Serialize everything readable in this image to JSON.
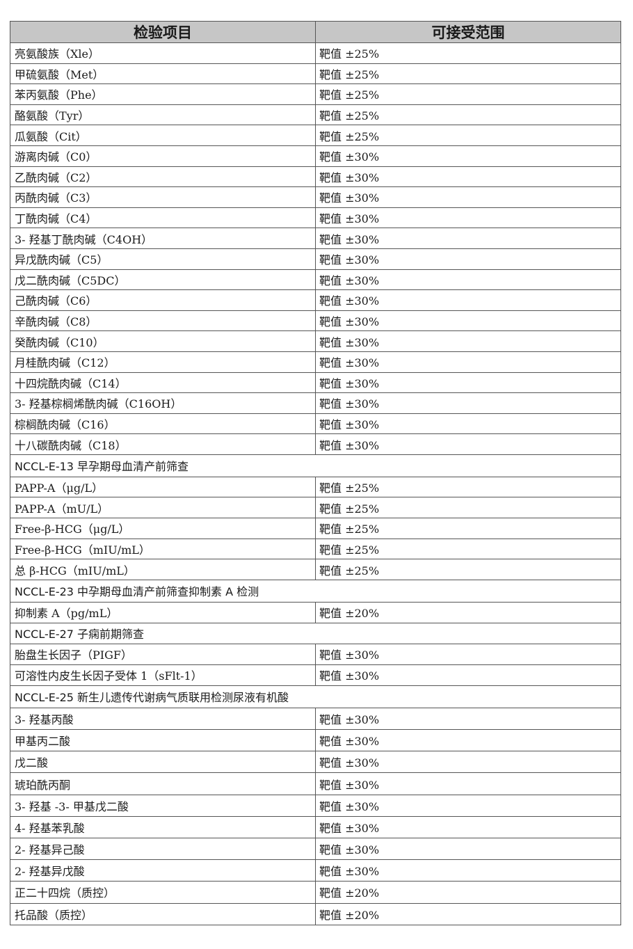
{
  "header": {
    "item": "检验项目",
    "range": "可接受范围"
  },
  "rows": [
    {
      "type": "row",
      "item": "亮氨酸族（Xle）",
      "range": "靶值 ±25%"
    },
    {
      "type": "row",
      "item": "甲硫氨酸（Met）",
      "range": "靶值 ±25%"
    },
    {
      "type": "row",
      "item": "苯丙氨酸（Phe）",
      "range": "靶值 ±25%"
    },
    {
      "type": "row",
      "item": "酪氨酸（Tyr）",
      "range": "靶值 ±25%"
    },
    {
      "type": "row",
      "item": "瓜氨酸（Cit）",
      "range": "靶值 ±25%"
    },
    {
      "type": "row",
      "item": "游离肉碱（C0）",
      "range": "靶值 ±30%"
    },
    {
      "type": "row",
      "item": "乙酰肉碱（C2）",
      "range": "靶值 ±30%"
    },
    {
      "type": "row",
      "item": "丙酰肉碱（C3）",
      "range": "靶值 ±30%"
    },
    {
      "type": "row",
      "item": "丁酰肉碱（C4）",
      "range": "靶值 ±30%"
    },
    {
      "type": "row",
      "item": "3- 羟基丁酰肉碱（C4OH）",
      "range": "靶值 ±30%"
    },
    {
      "type": "row",
      "item": "异戊酰肉碱（C5）",
      "range": "靶值 ±30%"
    },
    {
      "type": "row",
      "item": "戊二酰肉碱（C5DC）",
      "range": "靶值 ±30%"
    },
    {
      "type": "row",
      "item": "己酰肉碱（C6）",
      "range": "靶值 ±30%"
    },
    {
      "type": "row",
      "item": "辛酰肉碱（C8）",
      "range": "靶值 ±30%"
    },
    {
      "type": "row",
      "item": "癸酰肉碱（C10）",
      "range": "靶值 ±30%"
    },
    {
      "type": "row",
      "item": "月桂酰肉碱（C12）",
      "range": "靶值 ±30%"
    },
    {
      "type": "row",
      "item": "十四烷酰肉碱（C14）",
      "range": "靶值 ±30%"
    },
    {
      "type": "row",
      "item": "3- 羟基棕榈烯酰肉碱（C16OH）",
      "range": "靶值 ±30%"
    },
    {
      "type": "row",
      "item": "棕榈酰肉碱（C16）",
      "range": "靶值 ±30%"
    },
    {
      "type": "row",
      "item": "十八碳酰肉碱（C18）",
      "range": "靶值 ±30%"
    },
    {
      "type": "section",
      "item": "NCCL-E-13 早孕期母血清产前筛查"
    },
    {
      "type": "row",
      "item": "PAPP-A（μg/L）",
      "range": "靶值 ±25%"
    },
    {
      "type": "row",
      "item": "PAPP-A（mU/L）",
      "range": "靶值 ±25%"
    },
    {
      "type": "row",
      "item": "Free-β-HCG（μg/L）",
      "range": "靶值 ±25%"
    },
    {
      "type": "row",
      "item": "Free-β-HCG（mIU/mL）",
      "range": "靶值 ±25%"
    },
    {
      "type": "row",
      "item": "总 β-HCG（mIU/mL）",
      "range": "靶值 ±25%"
    },
    {
      "type": "section",
      "item": "NCCL-E-23 中孕期母血清产前筛查抑制素 A 检测"
    },
    {
      "type": "row",
      "item": "抑制素 A（pg/mL）",
      "range": "靶值 ±20%"
    },
    {
      "type": "section",
      "item": "NCCL-E-27 子痫前期筛查"
    },
    {
      "type": "row",
      "item": "胎盘生长因子（PIGF）",
      "range": "靶值 ±30%"
    },
    {
      "type": "row",
      "item": "可溶性内皮生长因子受体 1（sFlt-1）",
      "range": "靶值 ±30%"
    },
    {
      "type": "section",
      "item": "NCCL-E-25 新生儿遗传代谢病气质联用检测尿液有机酸"
    },
    {
      "type": "row",
      "item": "3- 羟基丙酸",
      "range": "靶值 ±30%"
    },
    {
      "type": "row",
      "item": "甲基丙二酸",
      "range": "靶值 ±30%"
    },
    {
      "type": "row",
      "item": "戊二酸",
      "range": "靶值 ±30%"
    },
    {
      "type": "row",
      "item": "琥珀酰丙酮",
      "range": "靶值 ±30%"
    },
    {
      "type": "row",
      "item": "3- 羟基 -3- 甲基戊二酸",
      "range": "靶值 ±30%"
    },
    {
      "type": "row",
      "item": "4- 羟基苯乳酸",
      "range": "靶值 ±30%"
    },
    {
      "type": "row",
      "item": "2- 羟基异己酸",
      "range": "靶值 ±30%"
    },
    {
      "type": "row",
      "item": "2- 羟基异戊酸",
      "range": "靶值 ±30%"
    },
    {
      "type": "row",
      "item": "正二十四烷（质控）",
      "range": "靶值 ±20%"
    },
    {
      "type": "row",
      "item": "托品酸（质控）",
      "range": "靶值 ±20%"
    }
  ]
}
